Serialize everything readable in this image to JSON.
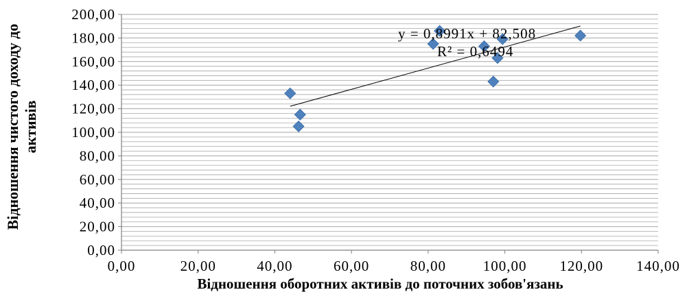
{
  "chart_data": {
    "type": "scatter",
    "xlabel": "Відношення оборотних активів до поточних зобов'язань",
    "ylabel_lines": [
      "Відношення чистого доходу до",
      "активів"
    ],
    "xlim": [
      0,
      140
    ],
    "ylim": [
      0,
      200
    ],
    "x_ticks": [
      0,
      20,
      40,
      60,
      80,
      100,
      120,
      140
    ],
    "y_ticks": [
      0,
      20,
      40,
      60,
      80,
      100,
      120,
      140,
      160,
      180,
      200
    ],
    "x_tick_labels": [
      "0,00",
      "20,00",
      "40,00",
      "60,00",
      "80,00",
      "100,00",
      "120,00",
      "140,00"
    ],
    "y_tick_labels": [
      "0,00",
      "20,00",
      "40,00",
      "60,00",
      "80,00",
      "100,00",
      "120,00",
      "140,00",
      "160,00",
      "180,00",
      "200,00"
    ],
    "minor_grid_step": 4,
    "grid": true,
    "points": [
      {
        "x": 44.0,
        "y": 133
      },
      {
        "x": 46.2,
        "y": 105
      },
      {
        "x": 46.6,
        "y": 115
      },
      {
        "x": 81.3,
        "y": 175
      },
      {
        "x": 83.0,
        "y": 186
      },
      {
        "x": 94.6,
        "y": 173
      },
      {
        "x": 97.0,
        "y": 143
      },
      {
        "x": 98.1,
        "y": 163
      },
      {
        "x": 99.4,
        "y": 179
      },
      {
        "x": 119.7,
        "y": 182
      }
    ],
    "trendline": {
      "slope": 0.8991,
      "intercept": 82.508,
      "x_range": [
        44.0,
        119.7
      ]
    },
    "equation_text": "y = 0,8991x + 82,508",
    "r2_text": "R² = 0,6494",
    "marker_color": "#4F81BD",
    "trendline_color": "#000000",
    "grid_color": "#A6A6A6"
  }
}
